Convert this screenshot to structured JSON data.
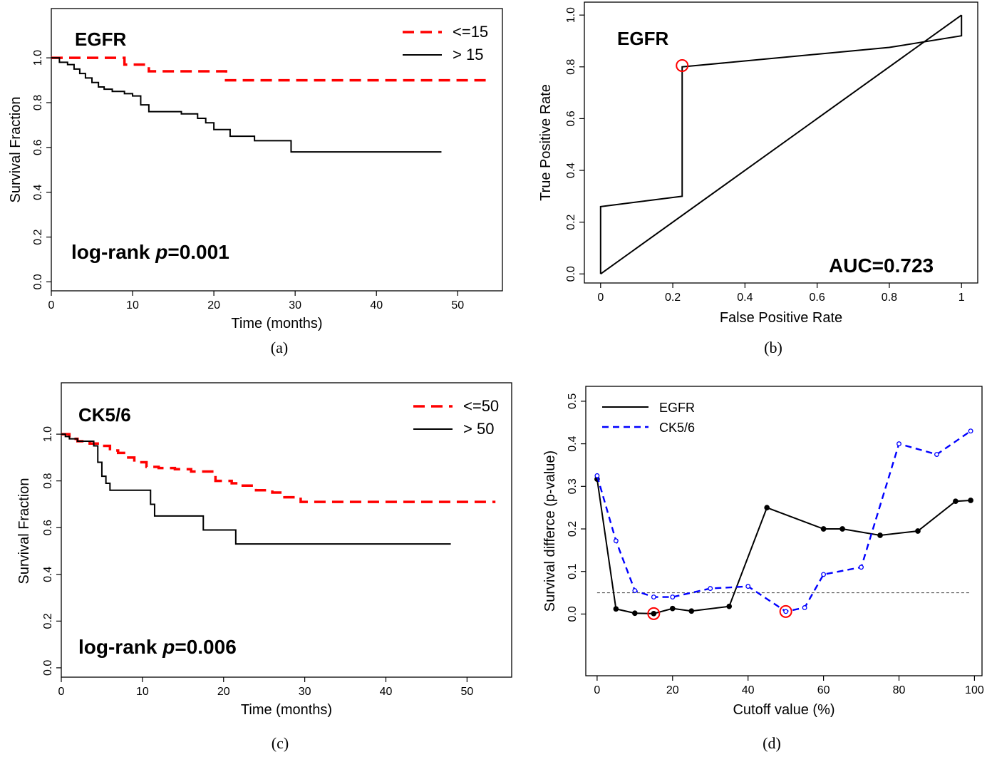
{
  "chart_data": [
    {
      "id": "a",
      "type": "line",
      "caption": "(a)",
      "label": "EGFR",
      "annotation_prefix": "log-rank ",
      "annotation_italic": "p",
      "annotation_suffix": "=0.001",
      "xlabel": "Time (months)",
      "ylabel": "Survival Fraction",
      "xlim": [
        0,
        55.5
      ],
      "ylim": [
        -0.04,
        1.22
      ],
      "xticks": [
        0,
        10,
        20,
        30,
        40,
        50
      ],
      "yticks": [
        0.0,
        0.2,
        0.4,
        0.6,
        0.8,
        1.0
      ],
      "grid": false,
      "legend_position": "top-right",
      "series": [
        {
          "name": "<=15",
          "color": "#ff0000",
          "style": "dashed",
          "x": [
            0,
            9,
            12,
            21.5,
            53.5
          ],
          "y": [
            1.0,
            0.97,
            0.94,
            0.9,
            0.9
          ]
        },
        {
          "name": "> 15",
          "color": "#000000",
          "style": "solid",
          "x": [
            0,
            1,
            2,
            2.8,
            3.5,
            4.2,
            5,
            5.8,
            6.5,
            7.5,
            9,
            10,
            11,
            12,
            16,
            18,
            19,
            20,
            22,
            25,
            29.5,
            48
          ],
          "y": [
            1.0,
            0.98,
            0.97,
            0.95,
            0.93,
            0.91,
            0.89,
            0.87,
            0.86,
            0.85,
            0.84,
            0.83,
            0.79,
            0.76,
            0.75,
            0.73,
            0.71,
            0.68,
            0.65,
            0.63,
            0.58,
            0.58
          ]
        }
      ]
    },
    {
      "id": "b",
      "type": "line",
      "caption": "(b)",
      "label": "EGFR",
      "annotation": "AUC=0.723",
      "xlabel": "False Positive Rate",
      "ylabel": "True Positive Rate",
      "xlim": [
        -0.045,
        1.045
      ],
      "ylim": [
        -0.035,
        1.05
      ],
      "xticks": [
        0.0,
        0.2,
        0.4,
        0.6,
        0.8,
        1.0
      ],
      "yticks": [
        0.0,
        0.2,
        0.4,
        0.6,
        0.8,
        1.0
      ],
      "grid": false,
      "series": [
        {
          "name": "ROC",
          "color": "#000000",
          "style": "solid",
          "x": [
            0,
            0,
            0.226,
            0.226,
            0.226,
            0.8,
            1.0,
            1.0
          ],
          "y": [
            0,
            0.26,
            0.3,
            0.3,
            0.8,
            0.875,
            0.92,
            1.0
          ]
        },
        {
          "name": "diagonal",
          "color": "#000000",
          "style": "solid",
          "x": [
            0,
            1.0
          ],
          "y": [
            0,
            1.0
          ]
        }
      ],
      "highlight": [
        {
          "x": 0.226,
          "y": 0.805
        }
      ]
    },
    {
      "id": "c",
      "type": "line",
      "caption": "(c)",
      "label": "CK5/6",
      "annotation_prefix": "log-rank ",
      "annotation_italic": "p",
      "annotation_suffix": "=0.006",
      "xlabel": "Time (months)",
      "ylabel": "Survival Fraction",
      "xlim": [
        0,
        55.5
      ],
      "ylim": [
        -0.04,
        1.22
      ],
      "xticks": [
        0,
        10,
        20,
        30,
        40,
        50
      ],
      "yticks": [
        0.0,
        0.2,
        0.4,
        0.6,
        0.8,
        1.0
      ],
      "grid": false,
      "legend_position": "top-right",
      "series": [
        {
          "name": "<=50",
          "color": "#ff0000",
          "style": "dashed",
          "x": [
            0,
            1,
            2,
            3.5,
            5,
            6,
            7,
            8,
            9,
            10.5,
            12,
            14,
            16,
            19,
            21,
            22,
            24,
            26,
            27.5,
            29.5,
            53.5
          ],
          "y": [
            1.0,
            0.98,
            0.97,
            0.96,
            0.95,
            0.93,
            0.92,
            0.9,
            0.88,
            0.86,
            0.855,
            0.85,
            0.84,
            0.8,
            0.79,
            0.78,
            0.76,
            0.75,
            0.73,
            0.71,
            0.71
          ]
        },
        {
          "name": "> 50",
          "color": "#000000",
          "style": "solid",
          "x": [
            0,
            0.5,
            1,
            2,
            4,
            4.5,
            5,
            5.5,
            6,
            11,
            11.5,
            17.5,
            21.5,
            48
          ],
          "y": [
            1.0,
            0.99,
            0.98,
            0.97,
            0.95,
            0.88,
            0.82,
            0.79,
            0.76,
            0.7,
            0.65,
            0.59,
            0.53,
            0.53
          ]
        }
      ]
    },
    {
      "id": "d",
      "type": "line",
      "caption": "(d)",
      "xlabel": "Cutoff value (%)",
      "ylabel": "Survival differce (p-value)",
      "xlim": [
        -3,
        102
      ],
      "ylim": [
        -0.145,
        0.535
      ],
      "xticks": [
        0,
        20,
        40,
        60,
        80,
        100
      ],
      "yticks": [
        0.0,
        0.1,
        0.2,
        0.3,
        0.4,
        0.5
      ],
      "grid": false,
      "legend_position": "top-left",
      "reference_line": 0.05,
      "series": [
        {
          "name": "EGFR",
          "color": "#000000",
          "style": "solid",
          "x": [
            0,
            5,
            10,
            15,
            20,
            25,
            35,
            45,
            60,
            65,
            75,
            85,
            95,
            99
          ],
          "y": [
            0.317,
            0.012,
            0.002,
            0.001,
            0.013,
            0.007,
            0.018,
            0.25,
            0.2,
            0.2,
            0.185,
            0.195,
            0.265,
            0.267
          ]
        },
        {
          "name": "CK5/6",
          "color": "#0000ff",
          "style": "dashed",
          "x": [
            0,
            5,
            10,
            15,
            20,
            30,
            40,
            50,
            55,
            60,
            70,
            80,
            90,
            99
          ],
          "y": [
            0.325,
            0.172,
            0.055,
            0.04,
            0.04,
            0.06,
            0.065,
            0.006,
            0.015,
            0.093,
            0.11,
            0.4,
            0.375,
            0.43
          ]
        }
      ],
      "highlight": [
        {
          "x": 15,
          "y": 0.001
        },
        {
          "x": 50,
          "y": 0.006
        }
      ]
    }
  ]
}
